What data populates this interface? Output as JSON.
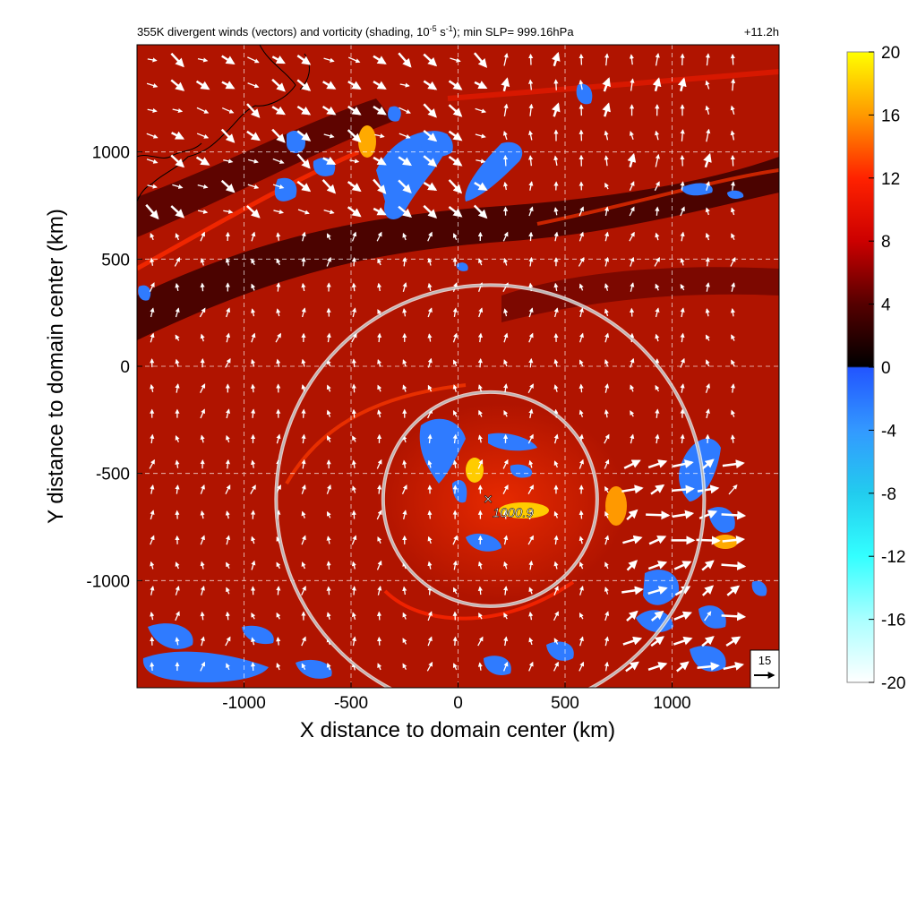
{
  "chart_data": {
    "type": "heatmap",
    "title": "355K divergent winds (vectors) and vorticity (shading, 10",
    "title_sup1": "-5",
    "title_mid": " s",
    "title_sup2": "-1",
    "title_tail": "); min SLP= 999.16hPa",
    "time_label": "+11.2h",
    "xlabel": "X distance to domain center (km)",
    "ylabel": "Y distance to domain center (km)",
    "xlim": [
      -1500,
      1500
    ],
    "ylim": [
      -1500,
      1500
    ],
    "x_ticks": [
      -1000,
      -500,
      0,
      500,
      1000
    ],
    "y_ticks": [
      1000,
      500,
      0,
      -500,
      -1000
    ],
    "grid": true,
    "colorbar": {
      "min": -20,
      "max": 20,
      "ticks": [
        20,
        16,
        12,
        8,
        4,
        0,
        -4,
        -8,
        -12,
        -16,
        -20
      ],
      "stops": [
        {
          "v": 20,
          "color": "#ffff00"
        },
        {
          "v": 16,
          "color": "#ff9900"
        },
        {
          "v": 12,
          "color": "#ff2200"
        },
        {
          "v": 8,
          "color": "#cc0000"
        },
        {
          "v": 4,
          "color": "#550000"
        },
        {
          "v": 0.05,
          "color": "#000000"
        },
        {
          "v": -0.05,
          "color": "#2255ff"
        },
        {
          "v": -4,
          "color": "#3399ff"
        },
        {
          "v": -8,
          "color": "#22ccee"
        },
        {
          "v": -12,
          "color": "#33ffff"
        },
        {
          "v": -16,
          "color": "#aaffff"
        },
        {
          "v": -20,
          "color": "#ffffff"
        }
      ]
    },
    "center_marker": {
      "x": 140,
      "y": -620,
      "label": "1000.9"
    },
    "range_rings_km": [
      {
        "x": 150,
        "y": -620,
        "r": 500
      },
      {
        "x": 150,
        "y": -620,
        "r": 1000
      }
    ],
    "reference_vector": {
      "label": "15"
    },
    "colors": {
      "background_shading": "#b01400",
      "vector": "#ffffff",
      "ring": "#d8d8d8"
    }
  }
}
